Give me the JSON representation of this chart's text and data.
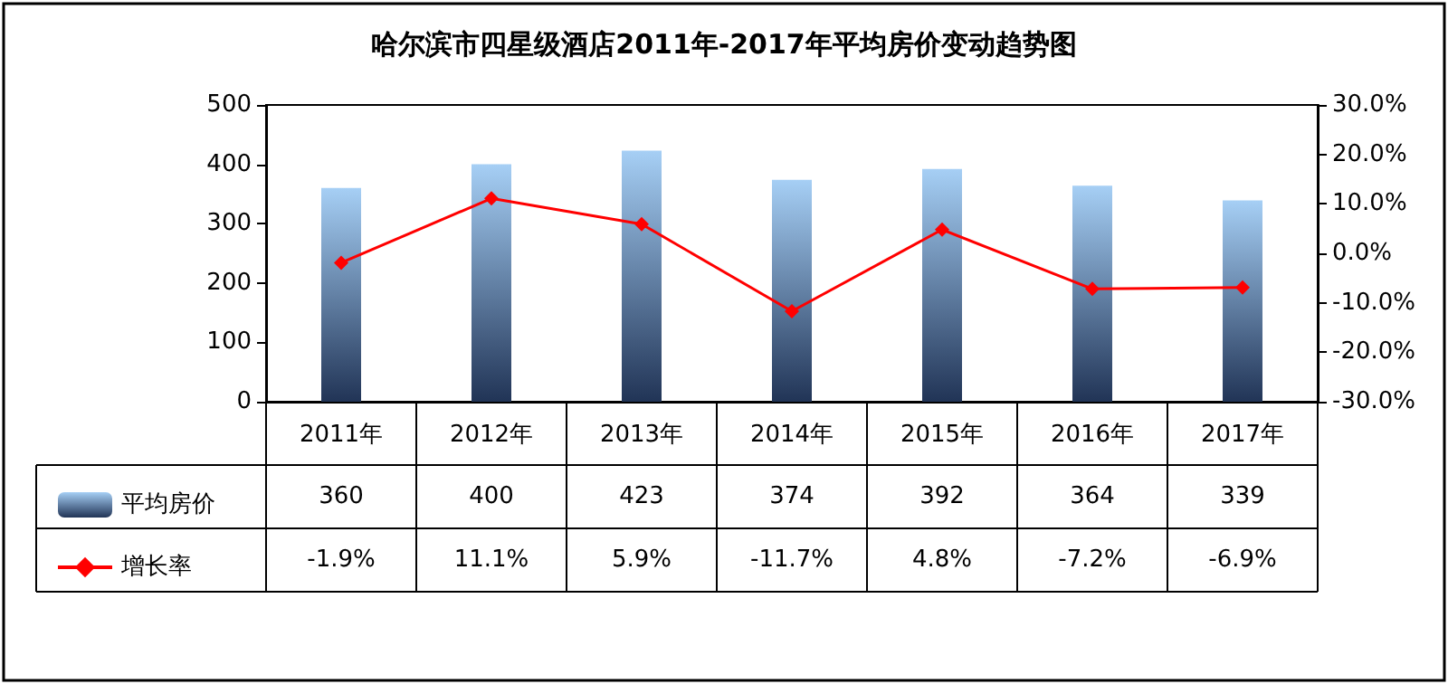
{
  "chart_data": {
    "type": "bar",
    "title": "哈尔滨市四星级酒店2011年-2017年平均房价变动趋势图",
    "categories": [
      "2011年",
      "2012年",
      "2013年",
      "2014年",
      "2015年",
      "2016年",
      "2017年"
    ],
    "series": [
      {
        "name": "平均房价",
        "color": "#a6cff5",
        "values": [
          360,
          400,
          423,
          374,
          392,
          364,
          339
        ],
        "value_labels": [
          "360",
          "400",
          "423",
          "374",
          "392",
          "364",
          "339"
        ]
      },
      {
        "name": "增长率",
        "type": "line",
        "axis": "y2",
        "color": "#ff0000",
        "marker": "diamond",
        "values": [
          -1.9,
          11.1,
          5.9,
          -11.7,
          4.8,
          -7.2,
          -6.9
        ],
        "value_labels": [
          "-1.9%",
          "11.1%",
          "5.9%",
          "-11.7%",
          "4.8%",
          "-7.2%",
          "-6.9%"
        ]
      }
    ],
    "ylim": [
      0,
      500
    ],
    "yticks": [
      0,
      100,
      200,
      300,
      400,
      500
    ],
    "y2lim": [
      -30,
      30
    ],
    "y2ticks": [
      {
        "value": -30,
        "label": "-30.0%"
      },
      {
        "value": -20,
        "label": "-20.0%"
      },
      {
        "value": -10,
        "label": "-10.0%"
      },
      {
        "value": 0,
        "label": "0.0%"
      },
      {
        "value": 10,
        "label": "10.0%"
      },
      {
        "value": 20,
        "label": "20.0%"
      },
      {
        "value": 30,
        "label": "30.0%"
      }
    ],
    "grid": false,
    "legend": "bottom left"
  }
}
